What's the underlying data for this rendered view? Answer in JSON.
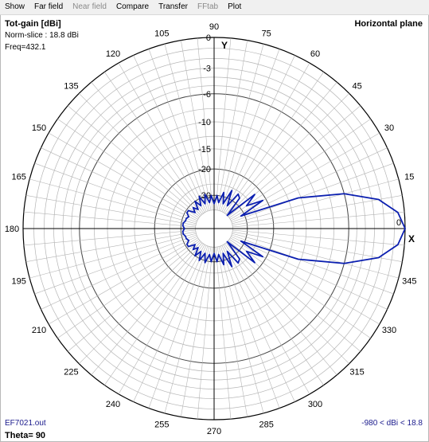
{
  "menu": {
    "items": [
      {
        "label": "Show",
        "enabled": true
      },
      {
        "label": "Far field",
        "enabled": true
      },
      {
        "label": "Near field",
        "enabled": false
      },
      {
        "label": "Compare",
        "enabled": true
      },
      {
        "label": "Transfer",
        "enabled": true
      },
      {
        "label": "FFtab",
        "enabled": false
      },
      {
        "label": "Plot",
        "enabled": true
      }
    ]
  },
  "plot": {
    "title": "Tot-gain [dBi]",
    "norm": "Norm-slice : 18.8 dBi",
    "freq": "Freq=432.1",
    "plane": "Horizontal plane",
    "file": "EF7021.out",
    "theta": "Theta= 90",
    "range": "-980 < dBi < 18.8",
    "x_axis_label": "X",
    "y_axis_label": "Y"
  },
  "chart_data": {
    "type": "polar",
    "quantity": "Tot-gain [dBi]",
    "normalized_to_dbi": 18.8,
    "radial_ticks_db": [
      0,
      -3,
      -6,
      -10,
      -15,
      -20,
      -30
    ],
    "angle_ticks_deg": [
      0,
      15,
      30,
      45,
      60,
      75,
      90,
      105,
      120,
      135,
      150,
      165,
      180,
      195,
      210,
      225,
      240,
      255,
      270,
      285,
      300,
      315,
      330,
      345
    ],
    "colors": {
      "pattern": "#0b1fb0",
      "grid": "#b5b5b5",
      "axis": "#000000"
    },
    "series": [
      {
        "name": "",
        "angles_deg": [
          0,
          5,
          10,
          15,
          20,
          25,
          30,
          35,
          40,
          45,
          50,
          55,
          60,
          65,
          70,
          75,
          80,
          85,
          90,
          95,
          100,
          105,
          110,
          115,
          120,
          125,
          130,
          135,
          140,
          145,
          150,
          155,
          160,
          165,
          170,
          175,
          180
        ],
        "gain_db": [
          0,
          -0.6,
          -2.3,
          -6,
          -13,
          -32,
          -21,
          -27,
          -22,
          -40,
          -27,
          -26,
          -34,
          -26,
          -34,
          -28,
          -34,
          -30,
          -35,
          -30,
          -34,
          -29,
          -34,
          -29,
          -34,
          -30,
          -35,
          -32,
          -35,
          -31,
          -31,
          -33,
          -32,
          -32,
          -31,
          -31,
          -32
        ],
        "symmetric_about_0": true
      }
    ]
  }
}
